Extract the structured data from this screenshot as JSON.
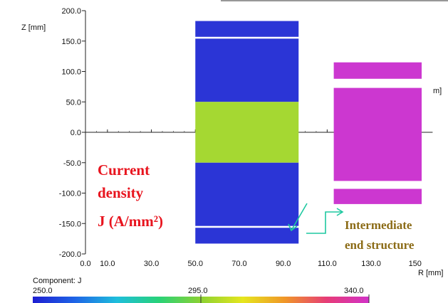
{
  "chart_data": {
    "type": "heatmap",
    "xlabel": "R [mm]",
    "ylabel": "Z [mm]",
    "xlim": [
      0,
      150
    ],
    "ylim": [
      -200,
      200
    ],
    "x_ticks": [
      "0.0",
      "10.0",
      "30.0",
      "50.0",
      "70.0",
      "90.0",
      "110.0",
      "130.0",
      "150"
    ],
    "x_tick_values": [
      0,
      10,
      30,
      50,
      70,
      90,
      110,
      130,
      150
    ],
    "y_ticks": [
      "200.0",
      "150.0",
      "100.0",
      "50.0",
      "0.0",
      "-50.0",
      "-100.0",
      "-150.0",
      "-200.0"
    ],
    "y_tick_values": [
      200,
      150,
      100,
      50,
      0,
      -50,
      -100,
      -150,
      -200
    ],
    "regions": [
      {
        "name": "coil-upper-end",
        "r": [
          50,
          97
        ],
        "z": [
          157,
          183
        ],
        "J": 255,
        "color": "#2b35d6"
      },
      {
        "name": "coil-upper",
        "r": [
          50,
          97
        ],
        "z": [
          50,
          154
        ],
        "J": 255,
        "color": "#2b35d6"
      },
      {
        "name": "coil-middle",
        "r": [
          50,
          97
        ],
        "z": [
          -50,
          50
        ],
        "J": 303,
        "color": "#a5d832"
      },
      {
        "name": "coil-lower",
        "r": [
          50,
          97
        ],
        "z": [
          -154,
          -50
        ],
        "J": 255,
        "color": "#2b35d6"
      },
      {
        "name": "coil-lower-end",
        "r": [
          50,
          97
        ],
        "z": [
          -183,
          -157
        ],
        "J": 255,
        "color": "#2b35d6"
      },
      {
        "name": "outer-upper",
        "r": [
          113,
          153
        ],
        "z": [
          88,
          115
        ],
        "J": 340,
        "color": "#cc37d0"
      },
      {
        "name": "outer-middle",
        "r": [
          113,
          153
        ],
        "z": [
          -80,
          73
        ],
        "J": 340,
        "color": "#cc37d0"
      },
      {
        "name": "outer-lower",
        "r": [
          113,
          153
        ],
        "z": [
          -118,
          -93
        ],
        "J": 340,
        "color": "#cc37d0"
      }
    ],
    "colorbar": {
      "title": "Component: J",
      "min_label": "250.0",
      "mid_label": "295.0",
      "max_label": "340.0",
      "colors": [
        "#1e1ed2",
        "#1e64e6",
        "#1ebedc",
        "#28d278",
        "#8cd232",
        "#e6e61e",
        "#f09628",
        "#e63c78",
        "#d232c8"
      ]
    },
    "partial_label": "m]"
  },
  "annotations": {
    "current_line1": "Current",
    "current_line2": "density",
    "current_line3": "J (A/mm²)",
    "intermediate_line1": "Intermediate",
    "intermediate_line2": "end structure",
    "colors": {
      "red": "#e8141e",
      "brown": "#8b6b16",
      "arrow": "#1ec8a0"
    }
  }
}
